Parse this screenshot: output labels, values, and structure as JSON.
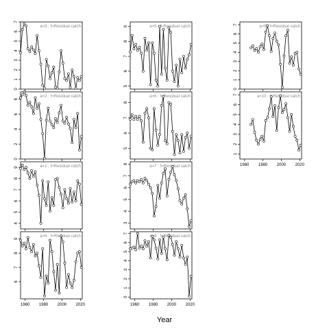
{
  "chart_data": {
    "type": "line",
    "xlabel": "Year",
    "xlim": [
      1955,
      2022
    ],
    "xticks": [
      1960,
      1980,
      2000,
      2020
    ],
    "panels": [
      {
        "id": "a3",
        "title": "a=3  :  f=Residual catch",
        "col": 0,
        "row": 0,
        "ylim": [
          0,
          7
        ],
        "yticks": [
          0,
          1,
          2,
          3,
          4,
          5,
          6,
          7
        ],
        "x": [
          1955,
          1957,
          1959,
          1961,
          1963,
          1965,
          1967,
          1969,
          1971,
          1973,
          1975,
          1977,
          1979,
          1981,
          1983,
          1985,
          1987,
          1989,
          1991,
          1993,
          1995,
          1997,
          1999,
          2001,
          2003,
          2005,
          2007,
          2009,
          2011,
          2013,
          2015,
          2017,
          2019,
          2021
        ],
        "y": [
          3.8,
          6.2,
          6.8,
          6.6,
          4.2,
          3.9,
          4.4,
          4.1,
          3.7,
          5.6,
          4.0,
          2.6,
          0.4,
          0.1,
          3.1,
          2.4,
          1.1,
          1.7,
          2.3,
          0.2,
          0.1,
          1.8,
          4.0,
          2.7,
          1.1,
          0.9,
          1.6,
          0.2,
          2.0,
          1.3,
          0.1,
          1.2,
          0.9,
          1.3
        ]
      },
      {
        "id": "a2",
        "title": "a=2  :  f=Residual catch",
        "col": 0,
        "row": 1,
        "ylim": [
          0,
          9
        ],
        "yticks": [
          0,
          2,
          4,
          6,
          8
        ],
        "x": [
          1955,
          1957,
          1959,
          1961,
          1963,
          1965,
          1967,
          1969,
          1971,
          1973,
          1975,
          1977,
          1979,
          1981,
          1983,
          1985,
          1987,
          1989,
          1991,
          1993,
          1995,
          1997,
          1999,
          2001,
          2003,
          2005,
          2007,
          2009,
          2011,
          2013,
          2015,
          2017,
          2019,
          2021
        ],
        "y": [
          8.2,
          8.6,
          9.0,
          8.5,
          7.2,
          7.6,
          7.0,
          6.1,
          8.2,
          6.8,
          7.4,
          5.3,
          3.4,
          0.1,
          5.2,
          6.8,
          5.1,
          4.6,
          4.2,
          5.4,
          4.9,
          6.2,
          7.2,
          5.1,
          4.8,
          5.6,
          4.7,
          4.1,
          2.2,
          5.3,
          4.2,
          6.1,
          1.2,
          3.0
        ]
      },
      {
        "id": "a1",
        "title": "a=1  :  f=Residual catch",
        "col": 0,
        "row": 2,
        "ylim": [
          3.5,
          9.5
        ],
        "yticks": [
          4,
          5,
          6,
          7,
          8,
          9
        ],
        "x": [
          1955,
          1957,
          1959,
          1961,
          1963,
          1965,
          1967,
          1969,
          1971,
          1973,
          1975,
          1977,
          1979,
          1981,
          1983,
          1985,
          1987,
          1989,
          1991,
          1993,
          1995,
          1997,
          1999,
          2001,
          2003,
          2005,
          2007,
          2009,
          2011,
          2013,
          2015,
          2017,
          2019,
          2021
        ],
        "y": [
          8.9,
          9.2,
          8.8,
          9.0,
          8.5,
          8.0,
          8.7,
          8.2,
          8.6,
          7.4,
          6.5,
          4.0,
          7.8,
          6.2,
          5.6,
          7.7,
          5.1,
          6.3,
          5.6,
          7.9,
          8.0,
          7.2,
          6.6,
          5.4,
          7.0,
          6.2,
          5.8,
          7.1,
          5.9,
          6.8,
          6.0,
          7.8,
          7.5,
          5.7
        ]
      },
      {
        "id": "a4",
        "title": "a=4  :  f=Residual catch",
        "col": 0,
        "row": 3,
        "ylim": [
          4.8,
          9.5
        ],
        "yticks": [
          6,
          7,
          8,
          9
        ],
        "x": [
          1955,
          1957,
          1959,
          1961,
          1963,
          1965,
          1967,
          1969,
          1971,
          1973,
          1975,
          1977,
          1979,
          1981,
          1983,
          1985,
          1987,
          1989,
          1991,
          1993,
          1995,
          1997,
          1999,
          2001,
          2003,
          2005,
          2007,
          2009,
          2011,
          2013,
          2015,
          2017,
          2019,
          2021
        ],
        "y": [
          8.9,
          8.5,
          8.7,
          8.3,
          9.1,
          8.4,
          8.1,
          8.6,
          7.8,
          8.0,
          7.1,
          6.3,
          8.3,
          5.0,
          6.4,
          5.9,
          8.9,
          8.1,
          6.7,
          5.4,
          7.2,
          5.2,
          9.2,
          8.8,
          7.3,
          5.6,
          6.5,
          5.9,
          5.6,
          6.1,
          7.4,
          8.0,
          8.1,
          7.0
        ]
      },
      {
        "id": "a5",
        "title": "a=5  :  f=Residual catch",
        "col": 1,
        "row": 0,
        "ylim": [
          4.8,
          9.3
        ],
        "yticks": [
          5,
          6,
          7,
          8,
          9
        ],
        "x": [
          1955,
          1957,
          1959,
          1961,
          1963,
          1965,
          1967,
          1969,
          1971,
          1973,
          1975,
          1977,
          1979,
          1981,
          1983,
          1985,
          1987,
          1989,
          1991,
          1993,
          1995,
          1997,
          1999,
          2001,
          2003,
          2005,
          2007,
          2009,
          2011,
          2013,
          2015,
          2017,
          2019,
          2021
        ],
        "y": [
          7.3,
          8.4,
          7.5,
          7.8,
          7.4,
          7.6,
          7.2,
          6.0,
          8.2,
          7.4,
          7.9,
          5.1,
          7.9,
          7.2,
          5.4,
          5.0,
          9.0,
          5.8,
          8.8,
          6.2,
          5.4,
          8.9,
          8.6,
          6.0,
          5.3,
          6.4,
          5.0,
          6.8,
          5.9,
          7.0,
          6.2,
          6.8,
          7.1,
          7.8
        ]
      },
      {
        "id": "a6",
        "title": "a=6  :  f=Residual catch",
        "col": 1,
        "row": 1,
        "ylim": [
          4.3,
          8.7
        ],
        "yticks": [
          5,
          6,
          7,
          8
        ],
        "x": [
          1955,
          1957,
          1959,
          1961,
          1963,
          1965,
          1967,
          1969,
          1971,
          1973,
          1975,
          1977,
          1979,
          1981,
          1983,
          1985,
          1987,
          1989,
          1991,
          1993,
          1995,
          1997,
          1999,
          2001,
          2003,
          2005,
          2007,
          2009,
          2011,
          2013,
          2015,
          2017,
          2019,
          2021
        ],
        "y": [
          6.9,
          7.2,
          6.9,
          7.1,
          6.9,
          7.1,
          6.8,
          5.4,
          7.3,
          7.6,
          7.0,
          5.0,
          4.9,
          7.6,
          6.2,
          5.2,
          5.9,
          7.8,
          8.4,
          5.5,
          5.3,
          8.0,
          7.9,
          6.1,
          4.6,
          5.9,
          5.5,
          4.7,
          5.9,
          4.8,
          5.7,
          6.0,
          5.0,
          5.8
        ]
      },
      {
        "id": "a7",
        "title": "a=7  :  f=Residual catch",
        "col": 1,
        "row": 2,
        "ylim": [
          2.5,
          8.2
        ],
        "yticks": [
          3,
          4,
          5,
          6,
          7,
          8
        ],
        "x": [
          1955,
          1957,
          1959,
          1961,
          1963,
          1965,
          1967,
          1969,
          1971,
          1973,
          1975,
          1977,
          1979,
          1981,
          1983,
          1985,
          1987,
          1989,
          1991,
          1993,
          1995,
          1997,
          1999,
          2001,
          2003,
          2005,
          2007,
          2009,
          2011,
          2013,
          2015,
          2017,
          2019,
          2021
        ],
        "y": [
          6.3,
          6.5,
          6.6,
          6.4,
          6.6,
          6.5,
          6.7,
          6.4,
          6.8,
          6.6,
          6.3,
          6.0,
          5.5,
          3.6,
          4.4,
          6.2,
          5.1,
          6.4,
          7.2,
          7.6,
          5.3,
          6.7,
          7.3,
          7.8,
          7.1,
          6.6,
          5.9,
          4.9,
          4.6,
          5.1,
          5.4,
          4.2,
          2.7,
          3.2
        ]
      },
      {
        "id": "a8",
        "title": "a=8  :  f=Residual catch",
        "col": 1,
        "row": 3,
        "ylim": [
          -0.2,
          7.2
        ],
        "yticks": [
          0,
          1,
          2,
          3,
          4,
          5,
          6,
          7
        ],
        "x": [
          1955,
          1957,
          1959,
          1961,
          1963,
          1965,
          1967,
          1969,
          1971,
          1973,
          1975,
          1977,
          1979,
          1981,
          1983,
          1985,
          1987,
          1989,
          1991,
          1993,
          1995,
          1997,
          1999,
          2001,
          2003,
          2005,
          2007,
          2009,
          2011,
          2013,
          2015,
          2017,
          2019,
          2021
        ],
        "y": [
          5.3,
          5.4,
          5.5,
          5.2,
          7.0,
          5.4,
          5.6,
          5.3,
          6.2,
          5.6,
          6.1,
          4.3,
          6.7,
          6.3,
          5.4,
          4.2,
          6.3,
          4.8,
          6.6,
          5.3,
          4.1,
          6.8,
          6.6,
          5.8,
          4.6,
          6.1,
          5.3,
          4.4,
          5.7,
          4.3,
          3.6,
          4.4,
          0.1,
          2.3
        ]
      },
      {
        "id": "a9",
        "title": "a=9  :  f=Residual catch",
        "col": 2,
        "row": 0,
        "ylim": [
          0,
          7.3
        ],
        "yticks": [
          0,
          1,
          2,
          3,
          4,
          5,
          6,
          7
        ],
        "x": [
          1967,
          1969,
          1971,
          1973,
          1975,
          1977,
          1979,
          1981,
          1983,
          1985,
          1987,
          1989,
          1991,
          1993,
          1995,
          1997,
          1999,
          2001,
          2003,
          2005,
          2007,
          2009,
          2011,
          2013,
          2015,
          2017,
          2019,
          2021
        ],
        "y": [
          4.5,
          4.7,
          4.2,
          4.4,
          4.0,
          4.6,
          4.9,
          4.3,
          6.2,
          6.9,
          5.8,
          4.1,
          5.5,
          6.1,
          5.2,
          4.8,
          2.7,
          0.2,
          3.6,
          5.8,
          6.4,
          2.8,
          3.5,
          2.6,
          3.9,
          4.0,
          2.2,
          1.6
        ]
      },
      {
        "id": "a10",
        "title": "a=10  :  f=Residual catch",
        "col": 2,
        "row": 1,
        "ylim": [
          0.5,
          7.3
        ],
        "yticks": [
          1,
          2,
          3,
          4,
          5,
          6,
          7
        ],
        "x": [
          1967,
          1969,
          1971,
          1973,
          1975,
          1977,
          1979,
          1981,
          1983,
          1985,
          1987,
          1989,
          1991,
          1993,
          1995,
          1997,
          1999,
          2001,
          2003,
          2005,
          2007,
          2009,
          2011,
          2013,
          2015,
          2017,
          2019,
          2021
        ],
        "y": [
          4.0,
          4.5,
          3.2,
          2.4,
          2.0,
          2.5,
          2.8,
          2.3,
          4.4,
          4.7,
          5.6,
          6.8,
          4.8,
          5.9,
          3.4,
          5.7,
          6.9,
          5.2,
          5.5,
          6.1,
          4.7,
          3.3,
          5.0,
          3.8,
          2.8,
          2.4,
          1.4,
          1.9
        ]
      }
    ]
  }
}
